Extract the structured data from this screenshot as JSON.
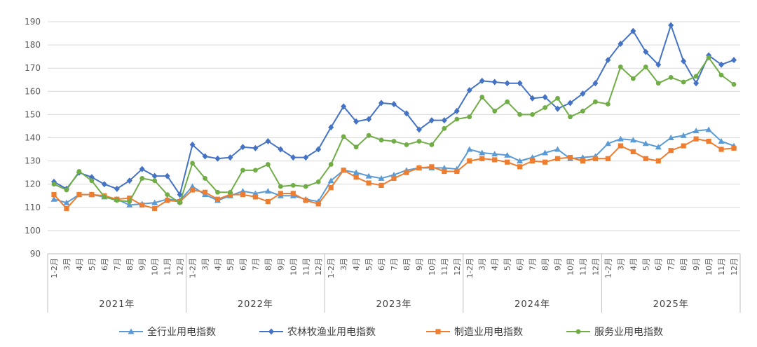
{
  "chart_data": {
    "type": "line",
    "title": "",
    "xlabel": "",
    "ylabel": "",
    "ylim": [
      90,
      190
    ],
    "yticks": [
      90,
      100,
      110,
      120,
      130,
      140,
      150,
      160,
      170,
      180,
      190
    ],
    "grid": true,
    "legend_position": "bottom",
    "years": [
      "2021年",
      "2022年",
      "2023年",
      "2024年",
      "2025年"
    ],
    "months": [
      "1-2月",
      "3月",
      "4月",
      "5月",
      "6月",
      "7月",
      "8月",
      "9月",
      "10月",
      "11月",
      "12月"
    ],
    "series": [
      {
        "name": "全行业用电指数",
        "color": "#5B9BD5",
        "marker": "triangle",
        "values": [
          113.5,
          112.0,
          115.5,
          115.5,
          114.5,
          113.5,
          111.0,
          111.5,
          112.0,
          113.5,
          113.0,
          119.0,
          115.5,
          113.0,
          115.0,
          117.0,
          116.0,
          117.0,
          115.0,
          115.0,
          113.5,
          112.5,
          121.5,
          126.0,
          125.0,
          123.5,
          122.5,
          124.0,
          126.0,
          127.0,
          127.0,
          127.0,
          126.5,
          135.0,
          133.5,
          133.0,
          132.5,
          130.0,
          131.5,
          133.5,
          135.0,
          131.0,
          131.5,
          132.0,
          137.5,
          139.5,
          139.0,
          137.5,
          136.0,
          140.0,
          141.0,
          143.0,
          143.5,
          138.5,
          136.5
        ]
      },
      {
        "name": "农林牧渔业用电指数",
        "color": "#4472C4",
        "marker": "diamond",
        "values": [
          121.0,
          118.0,
          125.0,
          123.0,
          120.0,
          118.0,
          121.5,
          126.5,
          123.5,
          123.5,
          115.5,
          137.0,
          132.0,
          131.0,
          131.5,
          136.0,
          135.5,
          138.5,
          135.0,
          131.5,
          131.5,
          135.0,
          144.5,
          153.5,
          147.0,
          148.0,
          155.0,
          154.5,
          150.5,
          143.5,
          147.5,
          147.5,
          151.5,
          160.5,
          164.5,
          164.0,
          163.5,
          163.5,
          157.0,
          157.5,
          152.5,
          155.0,
          159.0,
          163.5,
          173.5,
          180.5,
          186.0,
          177.0,
          171.5,
          188.5,
          173.0,
          163.5,
          175.5,
          171.5,
          173.5
        ]
      },
      {
        "name": "制造业用电指数",
        "color": "#ED7D31",
        "marker": "square",
        "values": [
          115.5,
          109.5,
          115.5,
          115.5,
          115.0,
          113.5,
          114.0,
          111.0,
          109.5,
          113.0,
          112.5,
          117.5,
          116.5,
          113.5,
          115.5,
          115.5,
          114.5,
          112.5,
          116.0,
          116.0,
          113.0,
          111.5,
          118.5,
          126.0,
          123.0,
          120.5,
          119.5,
          122.5,
          125.0,
          127.0,
          127.5,
          125.5,
          125.5,
          130.0,
          131.0,
          130.5,
          129.5,
          127.5,
          130.0,
          129.5,
          131.0,
          131.5,
          130.0,
          131.0,
          131.0,
          136.5,
          134.0,
          131.0,
          130.0,
          134.5,
          136.5,
          139.5,
          138.5,
          135.0,
          135.5
        ]
      },
      {
        "name": "服务业用电指数",
        "color": "#70AD47",
        "marker": "circle",
        "values": [
          120.0,
          117.5,
          125.5,
          121.5,
          114.5,
          113.0,
          112.5,
          122.5,
          121.5,
          115.5,
          112.0,
          129.0,
          122.5,
          116.5,
          116.5,
          126.0,
          126.0,
          128.5,
          119.0,
          119.5,
          119.0,
          121.0,
          128.5,
          140.5,
          136.0,
          141.0,
          139.0,
          138.5,
          137.0,
          138.5,
          137.0,
          144.0,
          148.0,
          149.0,
          157.5,
          151.5,
          155.5,
          150.0,
          150.0,
          153.0,
          157.0,
          149.0,
          151.5,
          155.5,
          154.5,
          170.5,
          165.5,
          170.5,
          163.5,
          166.0,
          164.0,
          166.5,
          174.5,
          167.0,
          163.0
        ]
      }
    ]
  }
}
